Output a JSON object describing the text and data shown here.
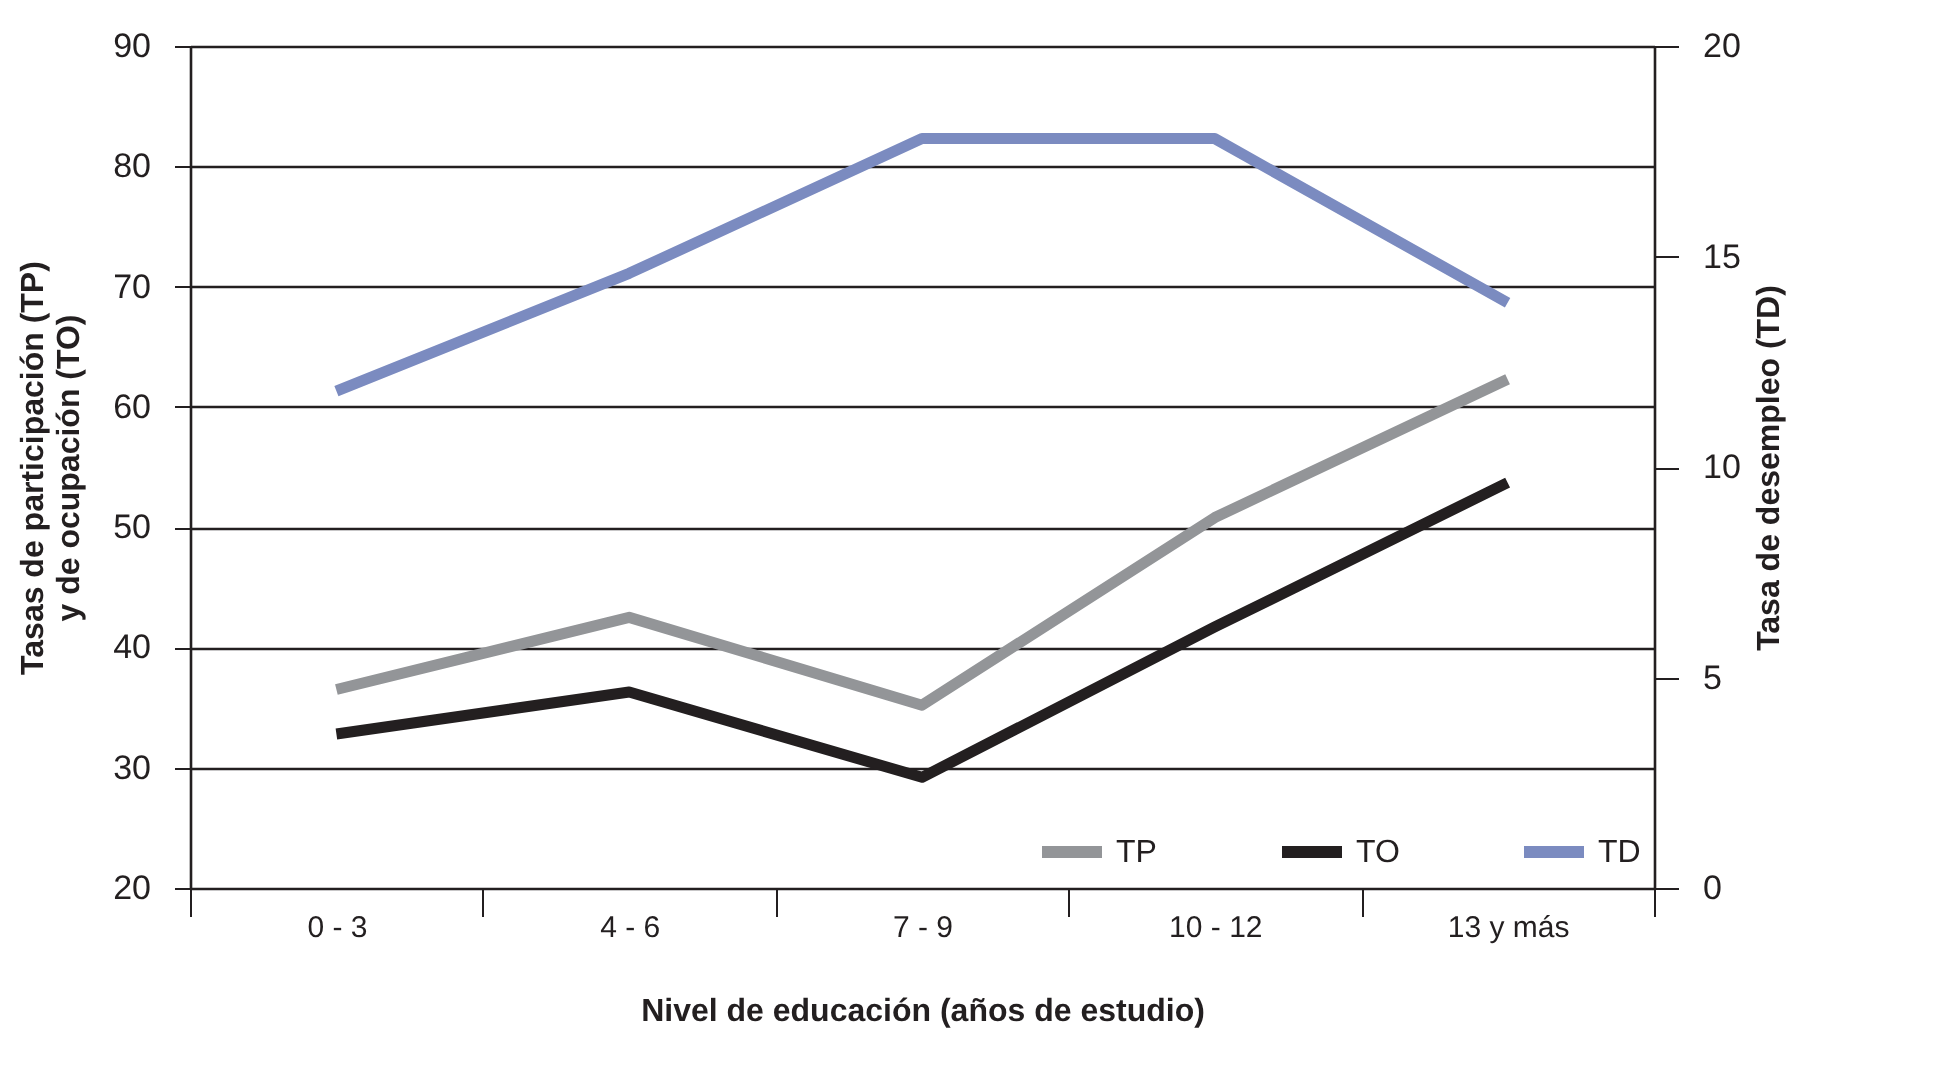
{
  "chart_data": {
    "type": "line",
    "xlabel": "Nivel de educación (años de estudio)",
    "ylabel": "Tasas de participación (TP)\ny de ocupación (TO)",
    "y2label": "Tasa de desempleo (TD)",
    "categories": [
      "0 - 3",
      "4 - 6",
      "7 - 9",
      "10 - 12",
      "13 y más"
    ],
    "series": [
      {
        "name": "TP",
        "color": "#939598",
        "values": [
          36.5,
          42.5,
          35.2,
          50.8,
          62.3
        ]
      },
      {
        "name": "TO",
        "color": "#231f20",
        "values": [
          32.8,
          36.3,
          29.2,
          41.7,
          53.7
        ]
      },
      {
        "name": "TD",
        "color": "#7b8bc0",
        "axis": "y2",
        "values": [
          11.8,
          14.6,
          17.8,
          17.8,
          13.9
        ]
      }
    ],
    "ylim": [
      20,
      90
    ],
    "yticks": [
      20,
      30,
      40,
      50,
      60,
      70,
      80,
      90
    ],
    "y2lim": [
      0,
      20
    ],
    "y2ticks": [
      0,
      5,
      10,
      15,
      20
    ],
    "grid": "y",
    "legend": "bottom right",
    "marker": "none",
    "line_style": "solid"
  }
}
